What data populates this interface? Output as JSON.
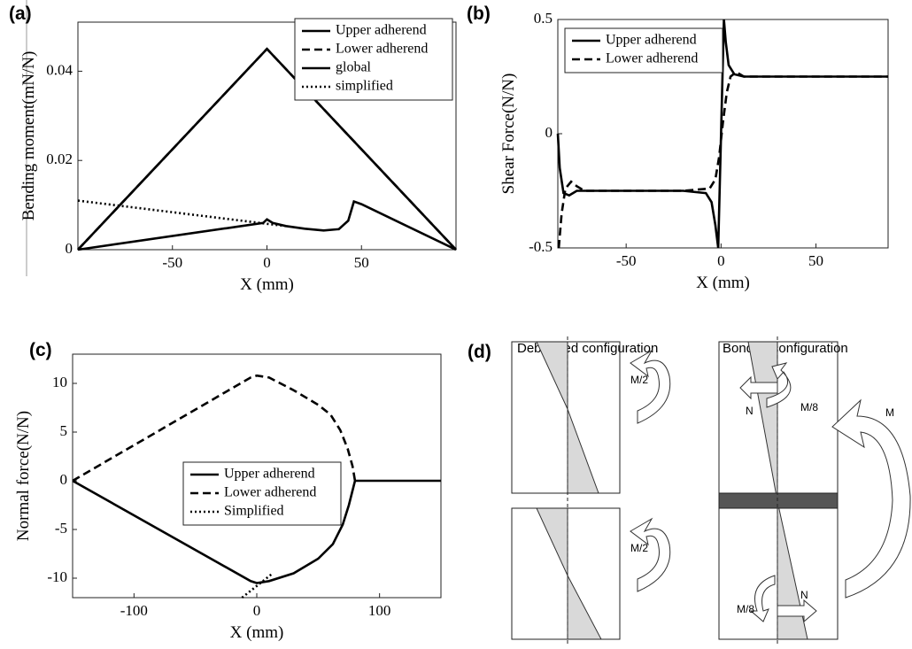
{
  "chart_data": [
    {
      "type": "line",
      "panel": "(a)",
      "x_label": "X (mm)",
      "y_label": "Bending moment(mN/N)",
      "xlim": [
        -100,
        100
      ],
      "ylim": [
        0,
        0.051
      ],
      "xticks": [
        -50,
        0,
        50
      ],
      "yticks": [
        0,
        0.02,
        0.04
      ],
      "legend": "upper right",
      "series": [
        {
          "name": "Upper adherend",
          "color": "#000000",
          "style": "solid",
          "x": [
            -100,
            0,
            100
          ],
          "values": [
            0,
            0.045,
            0
          ]
        },
        {
          "name": "Lower adherend",
          "color": "#000000",
          "style": "dashed",
          "x": [
            -100,
            0,
            100
          ],
          "values": [
            0,
            0.045,
            0
          ]
        },
        {
          "name": "global",
          "color": "#000000",
          "style": "solid",
          "x": [
            -100,
            -2,
            0,
            3,
            10,
            20,
            30,
            38,
            43,
            46,
            50,
            100
          ],
          "values": [
            0,
            0.006,
            0.0068,
            0.006,
            0.0053,
            0.0047,
            0.0043,
            0.0046,
            0.0065,
            0.0108,
            0.0102,
            0
          ]
        },
        {
          "name": "simplified",
          "color": "#000000",
          "style": "dotted",
          "x": [
            -100,
            0,
            10
          ],
          "values": [
            0.011,
            0.0058,
            0.0053
          ]
        }
      ]
    },
    {
      "type": "line",
      "panel": "(b)",
      "x_label": "X (mm)",
      "y_label": "Shear Force(N/N)",
      "xlim": [
        -86,
        88
      ],
      "ylim": [
        -0.5,
        0.5
      ],
      "xticks": [
        -50,
        0,
        50
      ],
      "yticks": [
        -0.5,
        0,
        0.5
      ],
      "legend": "upper left",
      "series": [
        {
          "name": "Upper adherend",
          "color": "#000000",
          "style": "solid",
          "x": [
            -86,
            -85,
            -83,
            -80,
            -76,
            -60,
            -20,
            -8,
            -5,
            -3,
            -1.5,
            1.5,
            2.5,
            4,
            7,
            12,
            88
          ],
          "values": [
            0,
            -0.15,
            -0.26,
            -0.27,
            -0.25,
            -0.25,
            -0.25,
            -0.26,
            -0.3,
            -0.4,
            -0.5,
            0.5,
            0.4,
            0.3,
            0.26,
            0.25,
            0.25
          ]
        },
        {
          "name": "Lower adherend",
          "color": "#000000",
          "style": "dashed",
          "x": [
            -85.5,
            -84,
            -82,
            -79,
            -76,
            -72,
            -20,
            -6,
            -3,
            -1,
            1,
            3,
            5,
            8,
            12,
            88
          ],
          "values": [
            -0.5,
            -0.35,
            -0.24,
            -0.21,
            -0.23,
            -0.25,
            -0.25,
            -0.24,
            -0.2,
            -0.1,
            0.05,
            0.18,
            0.25,
            0.27,
            0.25,
            0.25
          ]
        }
      ]
    },
    {
      "type": "line",
      "panel": "(c)",
      "x_label": "X (mm)",
      "y_label": "Normal force(N/N)",
      "xlim": [
        -150,
        150
      ],
      "ylim": [
        -12,
        13
      ],
      "xticks": [
        -100,
        0,
        100
      ],
      "yticks": [
        -10,
        -5,
        0,
        5,
        10
      ],
      "legend": "center",
      "series": [
        {
          "name": "Upper adherend",
          "color": "#000000",
          "style": "solid",
          "x": [
            -150,
            -5,
            0,
            10,
            30,
            50,
            62,
            70,
            75,
            78,
            80,
            150
          ],
          "values": [
            0,
            -10.3,
            -10.5,
            -10.3,
            -9.5,
            -8,
            -6.5,
            -4.5,
            -2.5,
            -1,
            0,
            0
          ]
        },
        {
          "name": "Lower adherend",
          "color": "#000000",
          "style": "dashed",
          "x": [
            -150,
            -5,
            0,
            10,
            30,
            50,
            60,
            68,
            74,
            78,
            80
          ],
          "values": [
            0,
            10.6,
            10.8,
            10.6,
            9.3,
            7.8,
            6.8,
            5.2,
            3.3,
            1.5,
            0
          ]
        },
        {
          "name": "Simplified",
          "color": "#000000",
          "style": "dotted",
          "x": [
            -12,
            0,
            12
          ],
          "values": [
            -12,
            -10.8,
            -9.6
          ]
        }
      ]
    }
  ],
  "diagram": {
    "panel": "(d)",
    "debonded": "Debonded configuration",
    "bonded": "Bonded configuration",
    "labels": [
      "M/2",
      "M/2",
      "M",
      "M/8",
      "N",
      "N",
      "M/8"
    ]
  }
}
